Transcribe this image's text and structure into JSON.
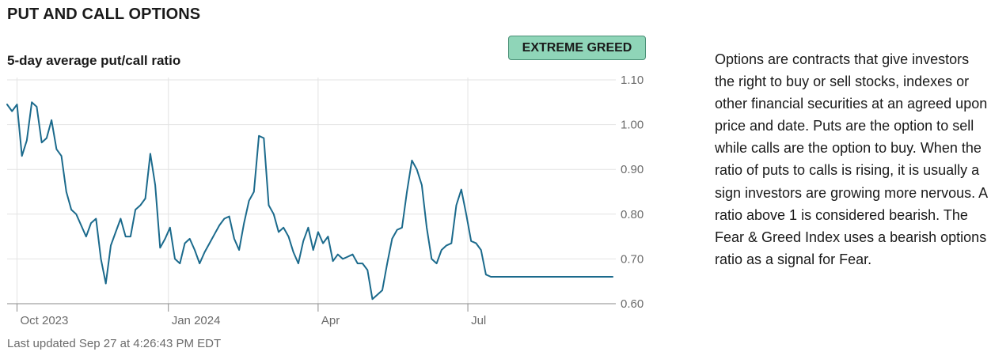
{
  "section": {
    "title": "PUT AND CALL OPTIONS"
  },
  "badge": {
    "label": "EXTREME GREED",
    "background": "#8fd5b8",
    "border": "#4a8f76"
  },
  "explainer": {
    "text": "Options are contracts that give investors the right to buy or sell stocks, indexes or other financial securities at an agreed upon price and date. Puts are the option to sell while calls are the option to buy. When the ratio of puts to calls is rising, it is usually a sign investors are growing more nervous. A ratio above 1 is considered bearish. The Fear & Greed Index uses a bearish options ratio as a signal for Fear."
  },
  "footer": {
    "updated": "Last updated Sep 27 at 4:26:43 PM EDT"
  },
  "colors": {
    "line": "#1b6a8c",
    "grid": "#e3e3e3",
    "axis": "#8a8a8a",
    "tick_text": "#6b6b6b"
  },
  "chart_data": {
    "type": "line",
    "title": "5-day average put/call ratio",
    "xlabel": "",
    "ylabel": "",
    "ylim": [
      0.6,
      1.1
    ],
    "xlim": [
      "2023-09-25",
      "2024-09-27"
    ],
    "y_ticks": [
      {
        "value": 1.1,
        "label": "1.10"
      },
      {
        "value": 1.0,
        "label": "1.00"
      },
      {
        "value": 0.9,
        "label": "0.90"
      },
      {
        "value": 0.8,
        "label": "0.80"
      },
      {
        "value": 0.7,
        "label": "0.70"
      },
      {
        "value": 0.6,
        "label": "0.60"
      }
    ],
    "x_ticks": [
      {
        "date": "2023-10-01",
        "label": "Oct 2023"
      },
      {
        "date": "2024-01-01",
        "label": "Jan 2024"
      },
      {
        "date": "2024-04-01",
        "label": "Apr"
      },
      {
        "date": "2024-07-01",
        "label": "Jul"
      }
    ],
    "grid": true,
    "legend": "none",
    "series": [
      {
        "x": [
          "2023-09-25",
          "2023-09-28",
          "2023-10-01",
          "2023-10-04",
          "2023-10-07",
          "2023-10-10",
          "2023-10-13",
          "2023-10-16",
          "2023-10-19",
          "2023-10-22",
          "2023-10-25",
          "2023-10-28",
          "2023-10-31",
          "2023-11-03",
          "2023-11-06",
          "2023-11-09",
          "2023-11-12",
          "2023-11-15",
          "2023-11-18",
          "2023-11-21",
          "2023-11-24",
          "2023-11-27",
          "2023-11-30",
          "2023-12-03",
          "2023-12-06",
          "2023-12-09",
          "2023-12-12",
          "2023-12-15",
          "2023-12-18",
          "2023-12-21",
          "2023-12-24",
          "2023-12-27",
          "2023-12-30",
          "2024-01-02",
          "2024-01-05",
          "2024-01-08",
          "2024-01-11",
          "2024-01-14",
          "2024-01-17",
          "2024-01-20",
          "2024-01-23",
          "2024-01-26",
          "2024-01-29",
          "2024-02-01",
          "2024-02-04",
          "2024-02-07",
          "2024-02-10",
          "2024-02-13",
          "2024-02-16",
          "2024-02-19",
          "2024-02-22",
          "2024-02-25",
          "2024-02-28",
          "2024-03-02",
          "2024-03-05",
          "2024-03-08",
          "2024-03-11",
          "2024-03-14",
          "2024-03-17",
          "2024-03-20",
          "2024-03-23",
          "2024-03-26",
          "2024-03-29",
          "2024-04-01",
          "2024-04-04",
          "2024-04-07",
          "2024-04-10",
          "2024-04-13",
          "2024-04-16",
          "2024-04-19",
          "2024-04-22",
          "2024-04-25",
          "2024-04-28",
          "2024-05-01",
          "2024-05-04",
          "2024-05-07",
          "2024-05-10",
          "2024-05-13",
          "2024-05-16",
          "2024-05-19",
          "2024-05-22",
          "2024-05-25",
          "2024-05-28",
          "2024-05-31",
          "2024-06-03",
          "2024-06-06",
          "2024-06-09",
          "2024-06-12",
          "2024-06-15",
          "2024-06-18",
          "2024-06-21",
          "2024-06-24",
          "2024-06-27",
          "2024-06-30",
          "2024-07-03",
          "2024-07-06",
          "2024-07-09",
          "2024-07-12",
          "2024-07-15",
          "2024-07-18",
          "2024-07-21",
          "2024-07-24",
          "2024-07-27",
          "2024-07-30",
          "2024-08-02",
          "2024-08-05",
          "2024-08-08",
          "2024-08-11",
          "2024-08-14",
          "2024-08-17",
          "2024-08-20",
          "2024-08-23",
          "2024-08-26",
          "2024-08-29",
          "2024-09-01",
          "2024-09-04",
          "2024-09-07",
          "2024-09-10",
          "2024-09-13",
          "2024-09-16",
          "2024-09-19",
          "2024-09-22",
          "2024-09-25",
          "2024-09-27"
        ],
        "y": [
          1.045,
          1.03,
          1.045,
          0.93,
          0.965,
          1.05,
          1.04,
          0.96,
          0.97,
          1.01,
          0.945,
          0.93,
          0.85,
          0.81,
          0.8,
          0.775,
          0.75,
          0.78,
          0.79,
          0.7,
          0.645,
          0.73,
          0.76,
          0.79,
          0.75,
          0.75,
          0.81,
          0.82,
          0.835,
          0.935,
          0.865,
          0.725,
          0.745,
          0.77,
          0.7,
          0.69,
          0.735,
          0.745,
          0.72,
          0.69,
          0.715,
          0.735,
          0.755,
          0.775,
          0.79,
          0.795,
          0.745,
          0.72,
          0.78,
          0.83,
          0.85,
          0.975,
          0.97,
          0.82,
          0.8,
          0.76,
          0.77,
          0.75,
          0.715,
          0.69,
          0.74,
          0.77,
          0.72,
          0.76,
          0.735,
          0.75,
          0.695,
          0.71,
          0.7,
          0.705,
          0.71,
          0.69,
          0.69,
          0.675,
          0.61,
          0.62,
          0.63,
          0.69,
          0.745,
          0.765,
          0.77,
          0.85,
          0.92,
          0.9,
          0.865,
          0.77,
          0.7,
          0.69,
          0.72,
          0.73,
          0.735,
          0.82,
          0.855,
          0.8,
          0.74,
          0.735,
          0.72,
          0.665,
          0.66,
          0.66,
          0.66,
          0.66,
          0.66,
          0.66,
          0.66,
          0.66,
          0.66,
          0.66,
          0.66,
          0.66,
          0.66,
          0.66,
          0.66,
          0.66,
          0.66,
          0.66,
          0.66,
          0.66,
          0.66,
          0.66,
          0.66,
          0.66,
          0.66,
          0.66
        ]
      }
    ]
  }
}
